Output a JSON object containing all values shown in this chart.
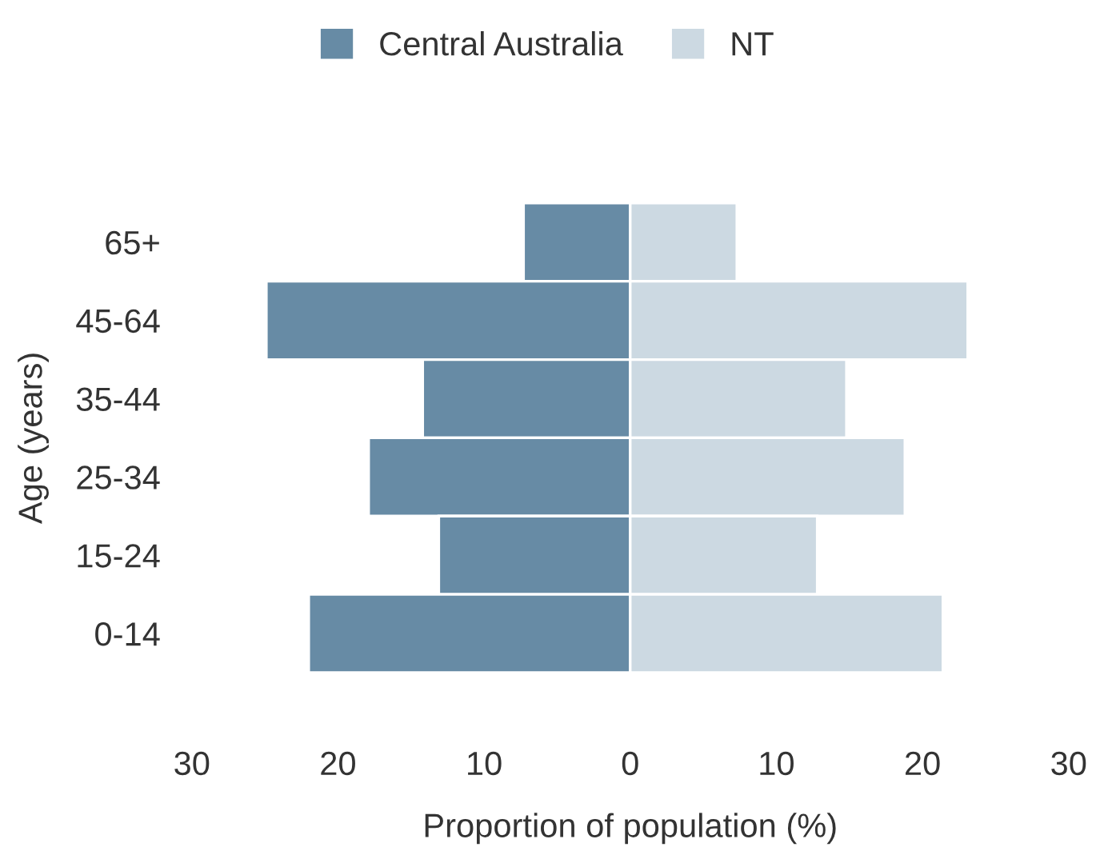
{
  "chart_data": {
    "type": "bar",
    "orientation": "horizontal",
    "xlabel": "Proportion of population (%)",
    "ylabel": "Age (years)",
    "categories": [
      "65+",
      "45-64",
      "35-44",
      "25-34",
      "15-24",
      "0-14"
    ],
    "series": [
      {
        "name": "Central Australia",
        "color": "#678ba5",
        "values": [
          -7.3,
          -24.9,
          -14.2,
          -17.9,
          -13.1,
          -22.0
        ]
      },
      {
        "name": "NT",
        "color": "#ccd9e2",
        "values": [
          7.3,
          23.1,
          14.8,
          18.8,
          12.8,
          21.4
        ]
      }
    ],
    "xlim": [
      -30,
      30
    ],
    "xticks": [
      {
        "value": -30,
        "label": "30"
      },
      {
        "value": -20,
        "label": "20"
      },
      {
        "value": -10,
        "label": "10"
      },
      0,
      10,
      20,
      30
    ],
    "grid": false,
    "legend": "top",
    "stacked": true
  }
}
